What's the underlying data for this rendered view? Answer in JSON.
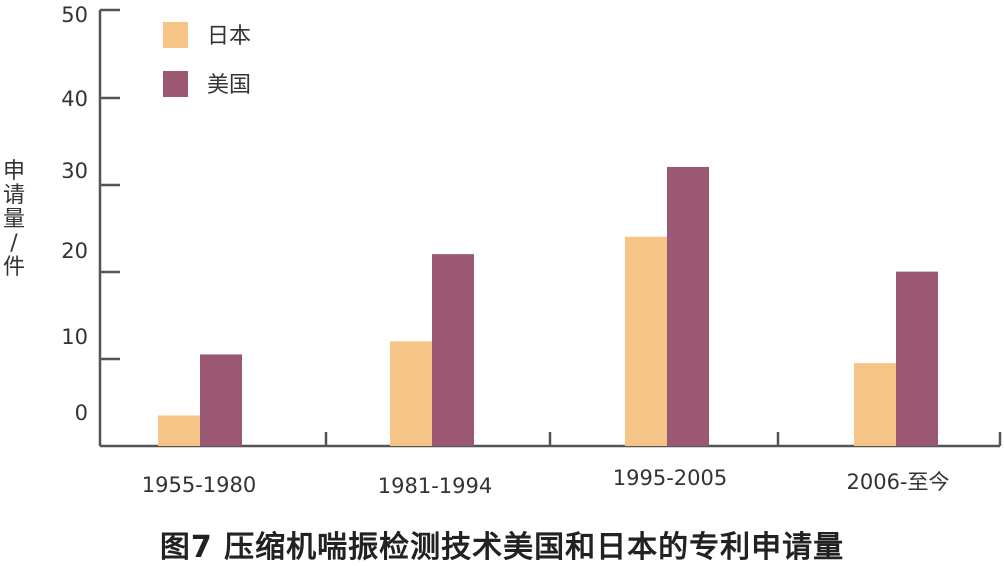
{
  "chart_data": {
    "type": "bar",
    "caption": "图7 压缩机喘振检测技术美国和日本的专利申请量",
    "ylabel": "申请量/件",
    "categories": [
      "1955-1980",
      "1981-1994",
      "1995-2005",
      "2006-至今"
    ],
    "series": [
      {
        "name": "日本",
        "color": "#F6C487",
        "values": [
          3.5,
          12,
          24,
          9.5
        ]
      },
      {
        "name": "美国",
        "color": "#9A5873",
        "values": [
          10.5,
          22,
          32,
          20
        ]
      }
    ],
    "y_tick_labels": [
      "0",
      "10",
      "20",
      "30",
      "40",
      "50"
    ],
    "ylim": [
      0,
      50
    ],
    "grid": false,
    "legend_position": "top-left"
  }
}
